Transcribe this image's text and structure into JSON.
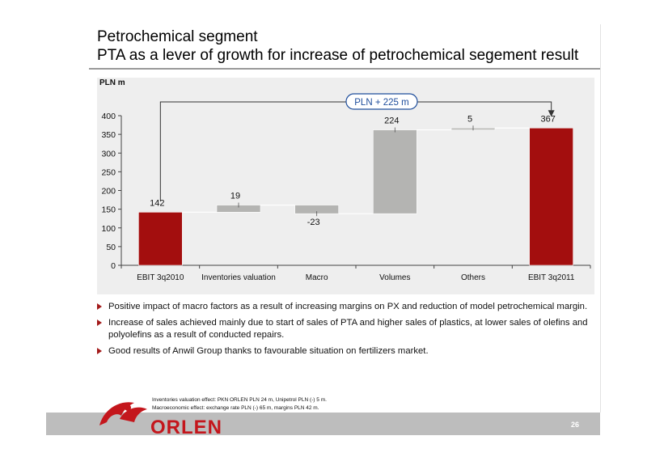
{
  "title_line1": "Petrochemical segment",
  "title_line2": "PTA as a lever of growth for increase of petrochemical segement result",
  "chart_data": {
    "type": "bar",
    "subtype": "waterfall",
    "unit_label": "PLN m",
    "categories": [
      "EBIT 3q2010",
      "Inventories valuation",
      "Macro",
      "Volumes",
      "Others",
      "EBIT 3q2011"
    ],
    "values": [
      142,
      19,
      -23,
      224,
      5,
      367
    ],
    "value_labels": [
      "142",
      "19",
      "-23",
      "224",
      "5",
      "367"
    ],
    "bar_kinds": [
      "total",
      "delta",
      "delta",
      "delta",
      "delta",
      "total"
    ],
    "ylim": [
      0,
      400
    ],
    "yticks": [
      "0",
      "50",
      "100",
      "150",
      "200",
      "250",
      "300",
      "350",
      "400"
    ],
    "grid": false,
    "legend": "none",
    "annotation": "PLN + 225 m",
    "colors": {
      "total": "#a30e0e",
      "delta": "#b4b4b2",
      "bracket": "#333333",
      "annotation_border": "#1f4e9c",
      "annotation_text": "#1f4e9c"
    }
  },
  "bullets": [
    "Positive impact of macro factors as a result of increasing margins on PX and reduction of model petrochemical margin.",
    "Increase of sales achieved mainly due to start of sales of PTA and higher sales of plastics, at lower sales of olefins and polyolefins as a result of conducted repairs.",
    "Good results of Anwil Group thanks to favourable situation on fertilizers market."
  ],
  "footnotes": [
    "Inventories valuation effect: PKN ORLEN PLN 24 m, Unipetrol PLN (-) 5 m.",
    "Macroeconomic effect: exchange rate PLN (-) 65 m, margins PLN 42 m."
  ],
  "logo_text": "ORLEN",
  "page_number": "26",
  "colors": {
    "brand_red": "#c4161c",
    "footer_gray": "#bdbdbd",
    "bullet_arrow": "#a31a1a"
  }
}
